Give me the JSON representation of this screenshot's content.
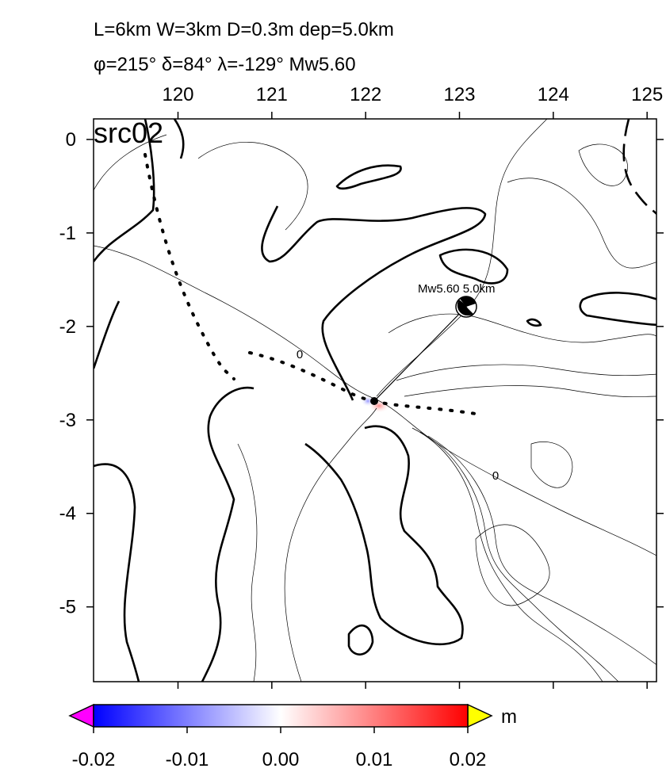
{
  "header": {
    "line1": "L=6km W=3km D=0.3m dep=5.0km",
    "line2": "φ=215° δ=84° λ=-129° Mw5.60"
  },
  "map": {
    "panel_label": "src02",
    "xlim": [
      119.1,
      125.1
    ],
    "xticks": [
      120,
      121,
      122,
      123,
      124,
      125
    ],
    "ylim": [
      -5.8,
      0.22
    ],
    "yticks": [
      0,
      -1,
      -2,
      -3,
      -4,
      -5
    ],
    "source_label": "Mw5.60  5.0km",
    "contour_labels": [
      "0",
      "0"
    ]
  },
  "colorbar": {
    "clim": [
      -0.02,
      0.02
    ],
    "ticks": [
      -0.02,
      -0.01,
      {
        "value": 0,
        "label": "0.00"
      },
      0.01,
      0.02
    ],
    "unit": "m"
  }
}
